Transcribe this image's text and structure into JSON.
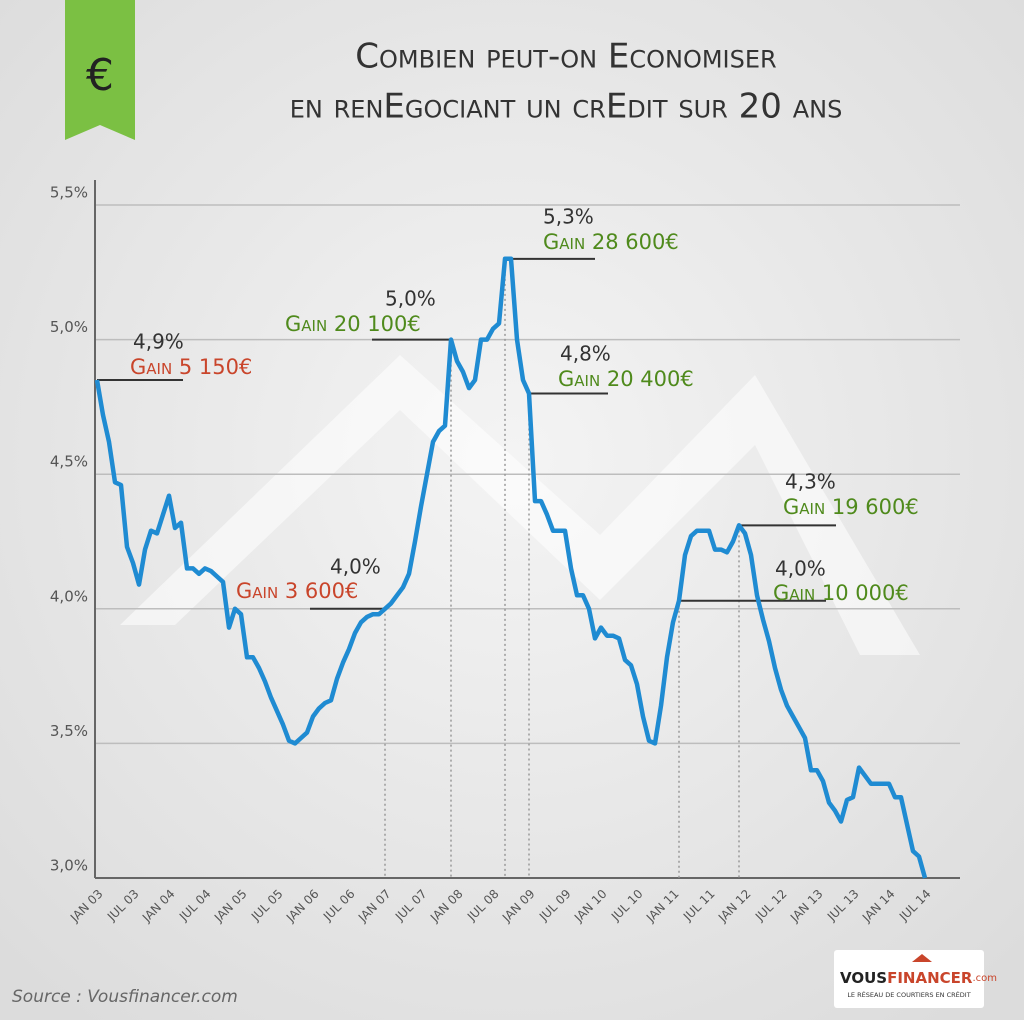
{
  "chart_data": {
    "type": "line",
    "icon": "€",
    "title_lines": [
      "Combien peut-on Economiser",
      "en renEgociant un crEdit sur 20 ans"
    ],
    "categories": [
      "JAN 03",
      null,
      null,
      null,
      null,
      null,
      "JUL 03",
      null,
      null,
      null,
      null,
      null,
      "JAN 04",
      null,
      null,
      null,
      null,
      null,
      "JUL 04",
      null,
      null,
      null,
      null,
      null,
      "JAN 05",
      null,
      null,
      null,
      null,
      null,
      "JUL 05",
      null,
      null,
      null,
      null,
      null,
      "JAN 06",
      null,
      null,
      null,
      null,
      null,
      "JUL 06",
      null,
      null,
      null,
      null,
      null,
      "JAN 07",
      null,
      null,
      null,
      null,
      null,
      "JUL 07",
      null,
      null,
      null,
      null,
      null,
      "JAN 08",
      null,
      null,
      null,
      null,
      null,
      "JUL 08",
      null,
      null,
      null,
      null,
      null,
      "JAN 09",
      null,
      null,
      null,
      null,
      null,
      "JUL 09",
      null,
      null,
      null,
      null,
      null,
      "JAN 10",
      null,
      null,
      null,
      null,
      null,
      "JUL 10",
      null,
      null,
      null,
      null,
      null,
      "JAN 11",
      null,
      null,
      null,
      null,
      null,
      "JUL 11",
      null,
      null,
      null,
      null,
      null,
      "JAN 12",
      null,
      null,
      null,
      null,
      null,
      "JUL 12",
      null,
      null,
      null,
      null,
      null,
      "JAN 13",
      null,
      null,
      null,
      null,
      null,
      "JUL 13",
      null,
      null,
      null,
      null,
      null,
      "JAN 14",
      null,
      null,
      null,
      null,
      null,
      "JUL 14"
    ],
    "series": [
      {
        "color": "#1f8bd2",
        "values": [
          4.85,
          4.72,
          4.62,
          4.47,
          4.46,
          4.23,
          4.17,
          4.09,
          4.22,
          4.29,
          4.28,
          4.35,
          4.42,
          4.3,
          4.32,
          4.15,
          4.15,
          4.13,
          4.15,
          4.14,
          4.12,
          4.1,
          3.93,
          4.0,
          3.98,
          3.82,
          3.82,
          3.78,
          3.73,
          3.67,
          3.62,
          3.57,
          3.51,
          3.5,
          3.52,
          3.54,
          3.6,
          3.63,
          3.65,
          3.66,
          3.74,
          3.8,
          3.85,
          3.91,
          3.95,
          3.97,
          3.98,
          3.98,
          4.0,
          4.02,
          4.05,
          4.08,
          4.13,
          4.25,
          4.38,
          4.5,
          4.62,
          4.66,
          4.68,
          5.0,
          4.92,
          4.88,
          4.82,
          4.85,
          5.0,
          5.0,
          5.04,
          5.06,
          5.3,
          5.3,
          5.0,
          4.85,
          4.8,
          4.4,
          4.4,
          4.35,
          4.29,
          4.29,
          4.29,
          4.15,
          4.05,
          4.05,
          4.0,
          3.89,
          3.93,
          3.9,
          3.9,
          3.89,
          3.81,
          3.79,
          3.72,
          3.6,
          3.51,
          3.5,
          3.64,
          3.82,
          3.95,
          4.03,
          4.2,
          4.27,
          4.29,
          4.29,
          4.29,
          4.22,
          4.22,
          4.21,
          4.25,
          4.31,
          4.28,
          4.2,
          4.05,
          3.96,
          3.88,
          3.78,
          3.7,
          3.64,
          3.6,
          3.56,
          3.52,
          3.4,
          3.4,
          3.36,
          3.28,
          3.25,
          3.21,
          3.29,
          3.3,
          3.41,
          3.38,
          3.35,
          3.35,
          3.35,
          3.35,
          3.3,
          3.3,
          3.2,
          3.1,
          3.08,
          3.0
        ]
      }
    ],
    "ylim": [
      3.0,
      5.5
    ],
    "yticks": [
      {
        "value": 3.0,
        "label": "3,0%"
      },
      {
        "value": 3.5,
        "label": "3,5%"
      },
      {
        "value": 4.0,
        "label": "4,0%"
      },
      {
        "value": 4.5,
        "label": "4,5%"
      },
      {
        "value": 5.0,
        "label": "5,0%"
      },
      {
        "value": 5.5,
        "label": "5,5%"
      }
    ],
    "grid": true,
    "annotations": [
      {
        "rate": "4,9%",
        "gain": "Gain 5 150€",
        "color": "#c9452b"
      },
      {
        "rate": "4,0%",
        "gain": "Gain 3 600€",
        "color": "#c9452b"
      },
      {
        "rate": "5,0%",
        "gain": "Gain 20 100€",
        "color": "#4f8a1c"
      },
      {
        "rate": "5,3%",
        "gain": "Gain 28 600€",
        "color": "#4f8a1c"
      },
      {
        "rate": "4,8%",
        "gain": "Gain 20 400€",
        "color": "#4f8a1c"
      },
      {
        "rate": "4,3%",
        "gain": "Gain 19 600€",
        "color": "#4f8a1c"
      },
      {
        "rate": "4,0%",
        "gain": "Gain 10 000€",
        "color": "#4f8a1c"
      }
    ],
    "source": "Source : Vousfinancer.com",
    "logo": {
      "part1": "VOUS",
      "part2": "FINANCER",
      "domain": ".com",
      "tagline": "LE RÉSEAU DE COURTIERS EN CRÉDIT"
    }
  }
}
